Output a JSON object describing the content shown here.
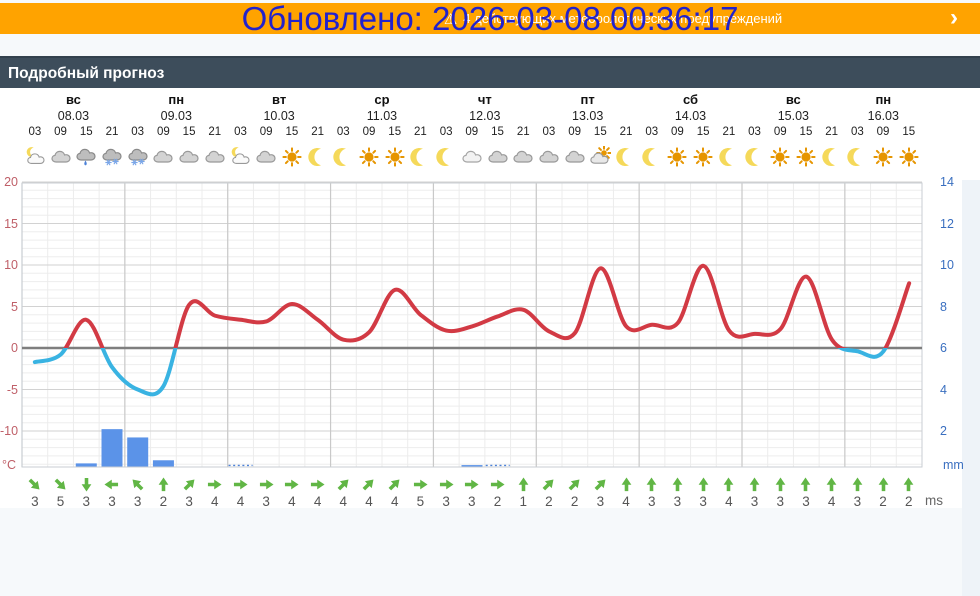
{
  "banner": {
    "updated_text": "Обновлено: 2026-03-08 00:36:17",
    "warning_text": "4 действующих метеорологических предупреждений",
    "warning_icon": "⚠",
    "chevron": "›",
    "bg_color": "#ffa300",
    "updated_color": "#2222cc"
  },
  "header": {
    "title": "Подробный прогноз",
    "bg_color": "#3d4d5b"
  },
  "days": [
    {
      "name": "вс",
      "date": "08.03"
    },
    {
      "name": "пн",
      "date": "09.03"
    },
    {
      "name": "вт",
      "date": "10.03"
    },
    {
      "name": "ср",
      "date": "11.03"
    },
    {
      "name": "чт",
      "date": "12.03"
    },
    {
      "name": "пт",
      "date": "13.03"
    },
    {
      "name": "сб",
      "date": "14.03"
    },
    {
      "name": "вс",
      "date": "15.03"
    },
    {
      "name": "пн",
      "date": "16.03"
    }
  ],
  "day_slot_counts": [
    4,
    4,
    4,
    4,
    4,
    4,
    4,
    4,
    3
  ],
  "times": [
    "03",
    "09",
    "15",
    "21",
    "03",
    "09",
    "15",
    "21",
    "03",
    "09",
    "15",
    "21",
    "03",
    "09",
    "15",
    "21",
    "03",
    "09",
    "15",
    "21",
    "03",
    "09",
    "15",
    "21",
    "03",
    "09",
    "15",
    "21",
    "03",
    "09",
    "15",
    "21",
    "03",
    "09",
    "15"
  ],
  "weather_icons": [
    "moon-cloud",
    "cloud",
    "rain",
    "snow",
    "snow",
    "cloud",
    "cloud",
    "cloud",
    "moon-cloud",
    "cloud",
    "sun",
    "moon",
    "moon",
    "sun",
    "sun",
    "moon",
    "moon",
    "cloud-light",
    "cloud",
    "cloud",
    "cloud",
    "cloud",
    "sun-cloud",
    "moon",
    "moon",
    "sun",
    "sun",
    "moon",
    "moon",
    "sun",
    "sun",
    "moon",
    "moon",
    "sun",
    "sun"
  ],
  "chart_data": {
    "type": "line+bar",
    "series": [
      {
        "name": "temperature",
        "unit": "°C",
        "values": [
          -1.7,
          -0.8,
          3.4,
          -2.3,
          -5.0,
          -4.6,
          5.2,
          3.9,
          3.4,
          3.2,
          5.3,
          3.4,
          1.0,
          1.9,
          7.0,
          4.0,
          2.1,
          2.6,
          3.8,
          4.6,
          2.0,
          1.8,
          9.6,
          2.6,
          2.8,
          3.0,
          9.9,
          2.1,
          1.7,
          2.3,
          8.6,
          1.0,
          -0.4,
          -0.4,
          7.8
        ]
      },
      {
        "name": "precipitation",
        "unit": "mm",
        "values": [
          0,
          0,
          0.15,
          1.8,
          1.4,
          0.3,
          0,
          0,
          0,
          0,
          0,
          0,
          0,
          0,
          0,
          0,
          0,
          0.05,
          0,
          0,
          0,
          0,
          0,
          0,
          0,
          0,
          0,
          0,
          0,
          0,
          0,
          0,
          0,
          0,
          0
        ]
      }
    ],
    "precip_trace_slots": [
      8,
      18
    ],
    "left_axis": {
      "ticks": [
        20,
        15,
        10,
        5,
        0,
        -5,
        -10
      ],
      "unit": "°C",
      "range": [
        -14.3,
        20
      ],
      "color": "#bf5f68"
    },
    "right_axis": {
      "ticks": [
        14,
        12,
        10,
        8,
        6,
        4,
        2
      ],
      "unit": "mm",
      "color": "#3a6fc0"
    },
    "colors": {
      "temp_above_zero": "#d23a44",
      "temp_below_zero": "#39b3e2",
      "precip_bar": "#5b93e8"
    },
    "grid": true
  },
  "wind": {
    "unit": "ms",
    "arrow_color": "#61b645",
    "speeds_ms": [
      3,
      5,
      3,
      3,
      3,
      2,
      3,
      4,
      4,
      3,
      4,
      4,
      4,
      4,
      4,
      5,
      3,
      3,
      2,
      1,
      2,
      2,
      3,
      4,
      3,
      3,
      3,
      4,
      3,
      3,
      3,
      4,
      3,
      2,
      2
    ],
    "directions_deg": [
      135,
      135,
      180,
      270,
      315,
      0,
      45,
      90,
      90,
      90,
      90,
      90,
      45,
      45,
      45,
      90,
      90,
      90,
      90,
      0,
      45,
      45,
      45,
      0,
      0,
      0,
      0,
      0,
      0,
      0,
      0,
      0,
      0,
      0,
      0
    ]
  }
}
